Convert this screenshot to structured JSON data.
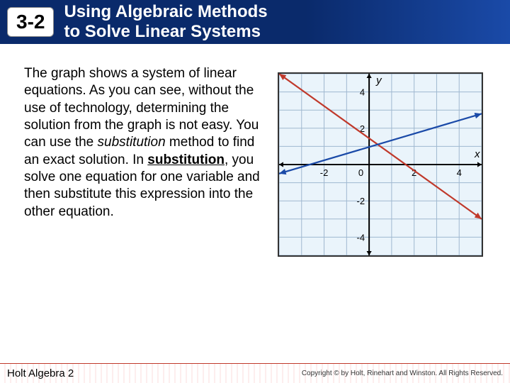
{
  "header": {
    "badge": "3-2",
    "title_line1": "Using Algebraic Methods",
    "title_line2": "to Solve Linear Systems"
  },
  "body": {
    "p1": "The graph shows a system of linear equations. As you can see, without the use of technology, determining the solution from the graph is not easy. You can use the ",
    "italic": "substitution",
    "p2": " method to find an exact solution. In ",
    "underline": "substitution",
    "p3": ", you solve one equation for one variable and then substitute this expression into the other equation."
  },
  "graph": {
    "type": "line",
    "background_color": "#eaf4fb",
    "grid_color": "#9fb8d0",
    "axis_color": "#000000",
    "xlim": [
      -4,
      5
    ],
    "ylim": [
      -5,
      5
    ],
    "xticks": [
      -2,
      2,
      4
    ],
    "yticks": [
      -4,
      -2,
      2,
      4
    ],
    "xlabel": "x",
    "ylabel": "y",
    "label_fontsize": 15,
    "tick_fontsize": 13,
    "lines": [
      {
        "color": "#c0392b",
        "p1": [
          -4,
          5
        ],
        "p2": [
          5,
          -3
        ],
        "width": 2.2
      },
      {
        "color": "#1a4aa8",
        "p1": [
          -4,
          -0.5
        ],
        "p2": [
          5,
          2.8
        ],
        "width": 2.2
      }
    ],
    "arrow_size": 6
  },
  "footer": {
    "left": "Holt Algebra 2",
    "right": "Copyright © by Holt, Rinehart and Winston. All Rights Reserved."
  }
}
